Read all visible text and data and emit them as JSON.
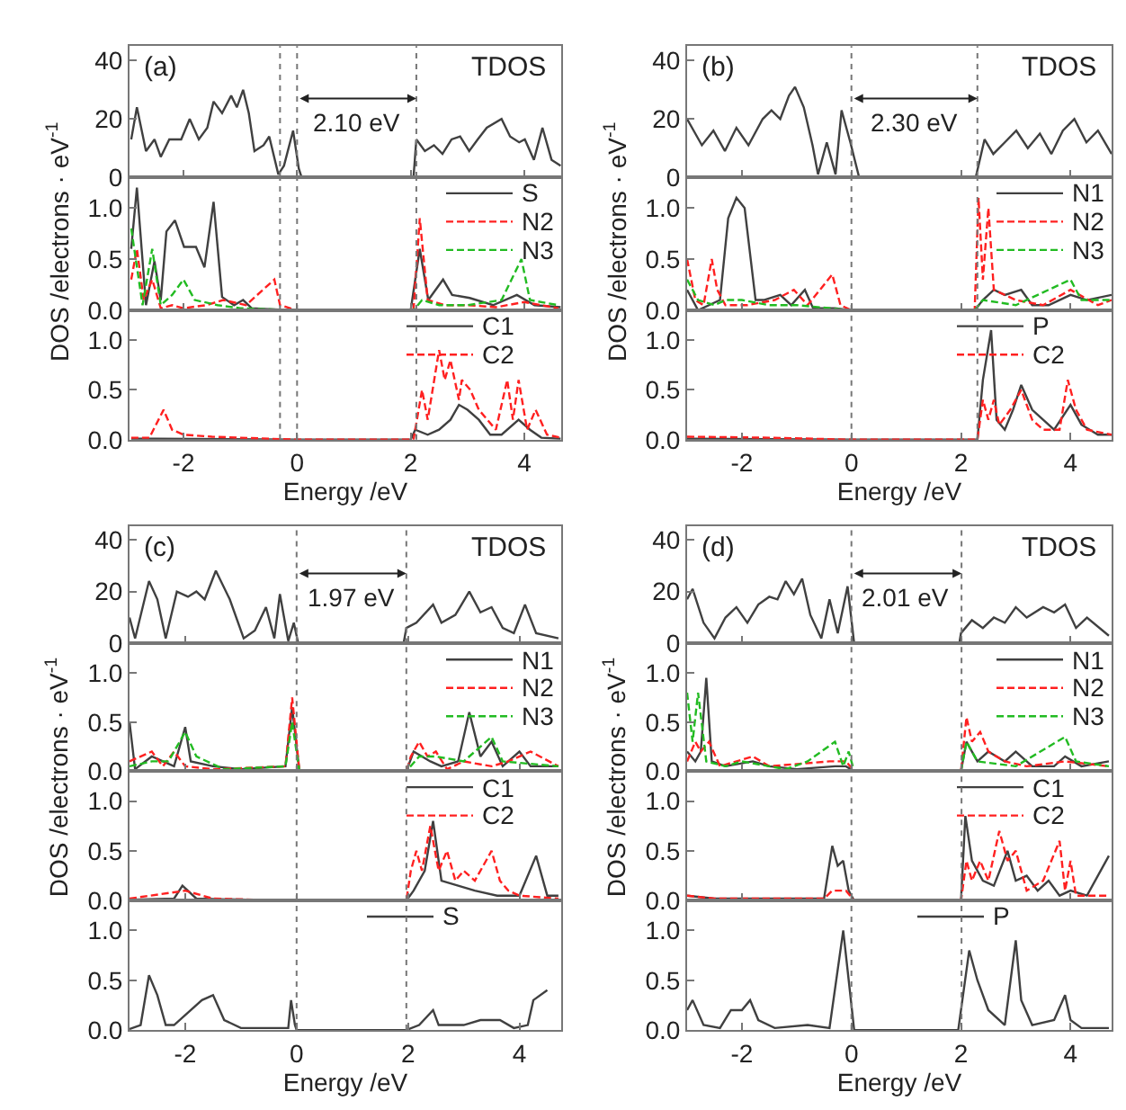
{
  "chart_data": [
    {
      "type": "line",
      "xlim": [
        -2.95,
        4.65
      ],
      "xticks": [
        -2,
        0,
        2,
        4
      ],
      "ylim": [
        0,
        45
      ],
      "yticks": [
        0,
        20,
        40
      ],
      "tick_labels": "y",
      "ylabel": "DOS /electrons · eV$^{-1}$",
      "ref_lines": [
        {
          "axis": "x",
          "value": -0.3,
          "line_style": "dotted"
        },
        {
          "axis": "x",
          "value": 0,
          "line_style": "dotted"
        },
        {
          "axis": "x",
          "value": 2.1,
          "line_style": "dotted"
        }
      ],
      "annotations": [
        "(a)",
        "TDOS",
        "2.10 eV"
      ],
      "series": [
        {
          "color": "#404040",
          "x": [
            -2.92,
            -2.82,
            -2.66,
            -2.51,
            -2.4,
            -2.25,
            -2.04,
            -1.89,
            -1.73,
            -1.58,
            -1.47,
            -1.32,
            -1.16,
            -1.06,
            -0.95,
            -0.85,
            -0.75,
            -0.59,
            -0.49,
            -0.33,
            -0.23,
            -0.07,
            0.03,
            0.08,
            2.05,
            2.1,
            2.25,
            2.41,
            2.56,
            2.72,
            2.87,
            3.03,
            3.18,
            3.34,
            3.6,
            3.75,
            3.91,
            4.01,
            4.17,
            4.32,
            4.48,
            4.64
          ],
          "values": [
            13,
            24,
            9,
            13,
            7,
            13,
            13,
            20,
            13,
            17,
            26,
            22,
            28,
            24,
            30,
            22,
            9,
            11,
            14,
            1,
            4,
            16,
            3,
            0,
            0,
            13,
            9,
            11,
            8,
            13,
            14,
            9,
            13,
            17,
            20,
            14,
            12,
            13,
            6,
            17,
            6,
            4
          ]
        }
      ]
    },
    {
      "type": "line",
      "xlim": [
        -2.95,
        4.65
      ],
      "xticks": [
        -2,
        0,
        2,
        4
      ],
      "ylim": [
        0,
        1.3
      ],
      "yticks": [
        {
          "value": 0,
          "label": "0.0"
        },
        {
          "value": 0.5,
          "label": "0.5"
        },
        {
          "value": 1,
          "label": "1.0"
        }
      ],
      "tick_labels": "y",
      "legend": "top right",
      "ref_lines": [
        {
          "axis": "x",
          "value": -0.3,
          "line_style": "dotted"
        },
        {
          "axis": "x",
          "value": 0,
          "line_style": "dotted"
        },
        {
          "axis": "x",
          "value": 2.1,
          "line_style": "dotted"
        }
      ],
      "series": [
        {
          "name": "S",
          "color": "#404040",
          "line_style": "solid",
          "x": [
            -2.92,
            -2.82,
            -2.66,
            -2.51,
            -2.4,
            -2.3,
            -2.15,
            -1.99,
            -1.89,
            -1.78,
            -1.73,
            -1.63,
            -1.47,
            -1.32,
            -1.11,
            -0.95,
            -0.8,
            -0.49,
            0,
            2.0,
            2.16,
            2.31,
            2.57,
            2.73,
            3.04,
            3.45,
            3.87,
            4.18,
            4.64
          ],
          "values": [
            0.6,
            1.2,
            0.05,
            0.48,
            0.1,
            0.77,
            0.88,
            0.62,
            null,
            0.62,
            null,
            0.42,
            1.06,
            0.13,
            0.05,
            0.1,
            0.02,
            0.01,
            0,
            0,
            0.6,
            0.1,
            0.3,
            0.15,
            0.12,
            0.05,
            0.15,
            0.05,
            0.03
          ]
        },
        {
          "name": "N2",
          "color": "#ff2020",
          "line_style": "dashed",
          "x": [
            -2.92,
            -2.82,
            -2.7,
            -2.55,
            -2.4,
            -2.2,
            -2.0,
            -1.6,
            -1.3,
            -0.9,
            -0.4,
            -0.3,
            0,
            2.05,
            2.16,
            2.3,
            2.6,
            3.0,
            3.5,
            4.0,
            4.6
          ],
          "values": [
            0.3,
            0.6,
            0.1,
            0.3,
            0.02,
            0.05,
            0.02,
            0.05,
            0.1,
            0.05,
            0.3,
            0.05,
            0,
            0,
            0.9,
            0.1,
            0.05,
            0.05,
            0.03,
            0.08,
            0.02
          ]
        },
        {
          "name": "N3",
          "color": "#22bb22",
          "line_style": "dashed",
          "x": [
            -2.92,
            -2.85,
            -2.72,
            -2.55,
            -2.4,
            -2.2,
            -2.0,
            -1.8,
            -1.4,
            -1.0,
            0,
            2.05,
            2.2,
            2.5,
            3.0,
            3.6,
            3.95,
            4.1,
            4.6
          ],
          "values": [
            0.8,
            null,
            0.05,
            0.6,
            0.05,
            0.15,
            0.3,
            0.1,
            0.05,
            0.02,
            0,
            0,
            0.1,
            0.05,
            0.05,
            0.1,
            0.5,
            0.1,
            0.05
          ]
        }
      ]
    },
    {
      "type": "line",
      "xlim": [
        -2.95,
        4.65
      ],
      "xticks": [
        -2,
        0,
        2,
        4
      ],
      "ylim": [
        0,
        1.3
      ],
      "yticks": [
        {
          "value": 0,
          "label": "0.0"
        },
        {
          "value": 0.5,
          "label": "0.5"
        },
        {
          "value": 1,
          "label": "1.0"
        }
      ],
      "xlabel": "Energy /eV",
      "legend": "top right",
      "ref_lines": [
        {
          "axis": "x",
          "value": -0.3,
          "line_style": "dotted"
        },
        {
          "axis": "x",
          "value": 0,
          "line_style": "dotted"
        },
        {
          "axis": "x",
          "value": 2.1,
          "line_style": "dotted"
        }
      ],
      "series": [
        {
          "name": "C1",
          "color": "#404040",
          "line_style": "solid",
          "x": [
            -2.92,
            -2.5,
            0,
            2.0,
            2.08,
            2.15,
            2.22,
            2.3,
            2.5,
            2.7,
            2.85,
            3.0,
            3.2,
            3.4,
            3.6,
            3.9,
            4.1,
            4.3,
            4.64
          ],
          "values": [
            0.01,
            0.01,
            0,
            0,
            0.1,
            null,
            null,
            0.05,
            0.1,
            0.2,
            0.35,
            0.3,
            0.2,
            0.05,
            0.05,
            0.2,
            0.1,
            0.02,
            0.01
          ]
        },
        {
          "name": "C2",
          "color": "#ff2020",
          "line_style": "dashed",
          "x": [
            -2.92,
            -2.6,
            -2.35,
            -2.2,
            -2.0,
            -1.5,
            -1.0,
            0,
            2.05,
            2.2,
            2.3,
            2.5,
            2.6,
            2.7,
            2.85,
            2.9,
            3.05,
            3.2,
            3.5,
            3.7,
            3.8,
            3.9,
            4.05,
            4.2,
            4.4,
            4.64
          ],
          "values": [
            0.02,
            0.02,
            0.3,
            0.1,
            0.05,
            0.03,
            0.02,
            0,
            0,
            0.5,
            0.2,
            0.9,
            0.6,
            0.8,
            0.4,
            0.6,
            0.5,
            0.3,
            0.1,
            0.6,
            0.2,
            0.6,
            0.1,
            0.3,
            0.05,
            0.02
          ]
        }
      ]
    },
    {
      "type": "line",
      "xlim": [
        -3.0,
        4.75
      ],
      "xticks": [
        -2,
        0,
        2,
        4
      ],
      "ylim": [
        0,
        45
      ],
      "yticks": [
        0,
        20,
        40
      ],
      "tick_labels": "y",
      "ylabel": "DOS /electrons · eV$^{-1}$",
      "ref_lines": [
        {
          "axis": "x",
          "value": 0,
          "line_style": "dotted"
        },
        {
          "axis": "x",
          "value": 2.3,
          "line_style": "dotted"
        }
      ],
      "annotations": [
        "(b)",
        "TDOS",
        "2.30 eV"
      ],
      "series": [
        {
          "color": "#404040",
          "x": [
            -3.0,
            -2.73,
            -2.52,
            -2.31,
            -2.1,
            -1.88,
            -1.62,
            -1.46,
            -1.3,
            -1.14,
            -1.03,
            -0.87,
            -0.71,
            -0.61,
            -0.45,
            -0.29,
            -0.18,
            -0.02,
            0.14,
            2.27,
            2.43,
            2.59,
            2.8,
            3.01,
            3.22,
            3.44,
            3.65,
            3.86,
            4.07,
            4.29,
            4.5,
            4.75
          ],
          "values": [
            20,
            11,
            16,
            9,
            17,
            11,
            20,
            23,
            20,
            28,
            31,
            24,
            11,
            1,
            12,
            1,
            23,
            12,
            0,
            0,
            13,
            8,
            12,
            16,
            10,
            15,
            8,
            16,
            20,
            12,
            16,
            8
          ]
        }
      ]
    },
    {
      "type": "line",
      "xlim": [
        -3.0,
        4.75
      ],
      "xticks": [
        -2,
        0,
        2,
        4
      ],
      "ylim": [
        0,
        1.3
      ],
      "yticks": [
        {
          "value": 0,
          "label": "0.0"
        },
        {
          "value": 0.5,
          "label": "0.5"
        },
        {
          "value": 1,
          "label": "1.0"
        }
      ],
      "tick_labels": "y",
      "legend": "top right",
      "ref_lines": [
        {
          "axis": "x",
          "value": 0,
          "line_style": "dotted"
        },
        {
          "axis": "x",
          "value": 2.3,
          "line_style": "dotted"
        }
      ],
      "series": [
        {
          "name": "N1",
          "color": "#404040",
          "line_style": "solid",
          "x": [
            -3.0,
            -2.8,
            -2.6,
            -2.4,
            -2.25,
            -2.1,
            -2.0,
            -1.95,
            -1.85,
            -1.75,
            -1.6,
            -1.3,
            -1.1,
            -0.85,
            -0.7,
            -0.3,
            0,
            2.25,
            2.4,
            2.6,
            2.8,
            3.1,
            3.3,
            3.6,
            4.0,
            4.3,
            4.75
          ],
          "values": [
            0.2,
            0.0,
            0.05,
            0.1,
            0.9,
            1.1,
            null,
            1.0,
            null,
            0.1,
            0.1,
            0.15,
            0.05,
            0.2,
            0.02,
            0.02,
            0,
            0,
            0.1,
            0.2,
            0.15,
            0.2,
            0.05,
            0.05,
            0.15,
            0.1,
            0.15
          ]
        },
        {
          "name": "N2",
          "color": "#ff2020",
          "line_style": "dashed",
          "x": [
            -3.0,
            -2.85,
            -2.7,
            -2.55,
            -2.45,
            -2.3,
            -1.9,
            -1.4,
            -1.05,
            -0.8,
            -0.35,
            -0.2,
            0,
            2.25,
            2.32,
            2.4,
            2.5,
            2.6,
            3.0,
            3.5,
            4.0,
            4.5,
            4.75
          ],
          "values": [
            0.5,
            0.1,
            0.05,
            0.5,
            0.2,
            0.05,
            0.05,
            0.1,
            0.2,
            0.05,
            0.35,
            0.05,
            0,
            0,
            1.1,
            0.3,
            1.0,
            0.2,
            0.1,
            0.05,
            0.2,
            0.05,
            0.1
          ]
        },
        {
          "name": "N3",
          "color": "#22bb22",
          "line_style": "dashed",
          "x": [
            -3.0,
            -2.9,
            -2.8,
            -2.5,
            -2.3,
            -2.0,
            -1.5,
            -1.0,
            0,
            2.25,
            2.4,
            3.0,
            4.0,
            4.2,
            4.75
          ],
          "values": [
            0.3,
            null,
            0.1,
            0.05,
            0.1,
            0.1,
            0.05,
            0.05,
            0,
            0,
            0.1,
            0.05,
            0.3,
            0.1,
            0.1
          ]
        }
      ]
    },
    {
      "type": "line",
      "xlim": [
        -3.0,
        4.75
      ],
      "xticks": [
        -2,
        0,
        2,
        4
      ],
      "ylim": [
        0,
        1.3
      ],
      "yticks": [
        {
          "value": 0,
          "label": "0.0"
        },
        {
          "value": 0.5,
          "label": "0.5"
        },
        {
          "value": 1,
          "label": "1.0"
        }
      ],
      "xlabel": "Energy /eV",
      "legend": "top right",
      "ref_lines": [
        {
          "axis": "x",
          "value": 0,
          "line_style": "dotted"
        },
        {
          "axis": "x",
          "value": 2.3,
          "line_style": "dotted"
        }
      ],
      "series": [
        {
          "name": "P",
          "color": "#404040",
          "line_style": "solid",
          "x": [
            -3.0,
            0,
            2.3,
            2.4,
            2.45,
            2.55,
            2.65,
            2.8,
            2.95,
            3.1,
            3.3,
            3.5,
            3.7,
            4.0,
            4.2,
            4.5,
            4.75
          ],
          "values": [
            0.01,
            0,
            0,
            0.6,
            null,
            1.1,
            0.2,
            0.1,
            0.3,
            0.55,
            0.3,
            0.2,
            0.1,
            0.35,
            0.15,
            0.05,
            0.05
          ]
        },
        {
          "name": "C2",
          "color": "#ff2020",
          "line_style": "dashed",
          "x": [
            -3.0,
            -1.5,
            0,
            2.3,
            2.4,
            2.5,
            2.6,
            2.7,
            2.9,
            3.1,
            3.3,
            3.5,
            3.8,
            3.95,
            4.1,
            4.3,
            4.75
          ],
          "values": [
            0.03,
            0.02,
            0,
            0,
            0.4,
            0.2,
            0.4,
            0.15,
            0.3,
            0.5,
            0.2,
            0.1,
            0.1,
            0.6,
            0.3,
            0.1,
            0.05
          ]
        }
      ]
    },
    {
      "type": "line",
      "xlim": [
        -3.0,
        4.75
      ],
      "xticks": [
        -2,
        0,
        2,
        4
      ],
      "ylim": [
        0,
        45
      ],
      "yticks": [
        0,
        20,
        40
      ],
      "tick_labels": "y",
      "ylabel": "DOS /electrons · eV$^{-1}$",
      "ref_lines": [
        {
          "axis": "x",
          "value": 0,
          "line_style": "dotted"
        },
        {
          "axis": "x",
          "value": 1.97,
          "line_style": "dotted"
        }
      ],
      "annotations": [
        "(c)",
        "TDOS",
        "1.97 eV"
      ],
      "series": [
        {
          "color": "#404040",
          "x": [
            -3.0,
            -2.9,
            -2.65,
            -2.5,
            -2.35,
            -2.15,
            -1.95,
            -1.8,
            -1.65,
            -1.45,
            -1.2,
            -0.95,
            -0.75,
            -0.55,
            -0.4,
            -0.3,
            -0.15,
            -0.05,
            0.03,
            1.92,
            1.97,
            2.15,
            2.45,
            2.6,
            2.85,
            3.1,
            3.3,
            3.5,
            3.7,
            3.9,
            4.1,
            4.3,
            4.7
          ],
          "values": [
            10,
            2,
            24,
            17,
            2,
            20,
            18,
            20,
            17,
            28,
            17,
            2,
            5,
            14,
            2,
            19,
            1,
            8,
            0,
            0,
            6,
            8,
            15,
            8,
            11,
            20,
            12,
            14,
            6,
            4,
            15,
            4,
            2
          ]
        }
      ]
    },
    {
      "type": "line",
      "xlim": [
        -3.0,
        4.75
      ],
      "xticks": [
        -2,
        0,
        2,
        4
      ],
      "ylim": [
        0,
        1.3
      ],
      "yticks": [
        {
          "value": 0,
          "label": "0.0"
        },
        {
          "value": 0.5,
          "label": "0.5"
        },
        {
          "value": 1,
          "label": "1.0"
        }
      ],
      "tick_labels": "y",
      "legend": "top right",
      "ref_lines": [
        {
          "axis": "x",
          "value": 0,
          "line_style": "dotted"
        },
        {
          "axis": "x",
          "value": 1.97,
          "line_style": "dotted"
        }
      ],
      "series": [
        {
          "name": "N1",
          "color": "#404040",
          "line_style": "solid",
          "x": [
            -3.0,
            -2.9,
            -2.6,
            -2.4,
            -2.2,
            -2.0,
            -1.9,
            -1.5,
            -1.0,
            -0.2,
            -0.08,
            0.05,
            1.97,
            2.1,
            2.4,
            2.6,
            2.9,
            3.1,
            3.3,
            3.5,
            3.7,
            4.0,
            4.2,
            4.7
          ],
          "values": [
            0.5,
            0.02,
            0.15,
            0.1,
            0.05,
            0.45,
            0.1,
            0.05,
            0.02,
            0.05,
            0.65,
            0,
            0,
            0.2,
            0.1,
            0.05,
            0.1,
            0.6,
            0.15,
            0.3,
            0.05,
            0.2,
            0.05,
            0.05
          ]
        },
        {
          "name": "N2",
          "color": "#ff2020",
          "line_style": "dashed",
          "x": [
            -3.0,
            -2.6,
            -2.4,
            -2.2,
            -2.0,
            -1.5,
            -0.2,
            -0.08,
            0.05,
            1.97,
            2.05,
            2.2,
            2.35,
            2.5,
            2.7,
            3.0,
            3.5,
            3.8,
            4.2,
            4.7
          ],
          "values": [
            0.1,
            0.2,
            0.05,
            0.2,
            0.05,
            0.02,
            0.05,
            0.75,
            0,
            0,
            0.15,
            0.3,
            0.15,
            0.2,
            0.02,
            0.1,
            0.05,
            0.1,
            0.2,
            0.05
          ]
        },
        {
          "name": "N3",
          "color": "#22bb22",
          "line_style": "dashed",
          "x": [
            -3.0,
            -2.6,
            -2.3,
            -2.0,
            -1.8,
            -1.3,
            -0.2,
            -0.08,
            0.05,
            1.97,
            2.2,
            2.5,
            3.0,
            3.5,
            3.7,
            4.7
          ],
          "values": [
            0.05,
            0.1,
            0.1,
            0.4,
            0.15,
            0.02,
            0.05,
            0.5,
            0,
            0,
            0.15,
            0.15,
            0.1,
            0.35,
            0.1,
            0.05
          ]
        }
      ]
    },
    {
      "type": "line",
      "xlim": [
        -3.0,
        4.75
      ],
      "xticks": [
        -2,
        0,
        2,
        4
      ],
      "ylim": [
        0,
        1.3
      ],
      "yticks": [
        {
          "value": 0,
          "label": "0.0"
        },
        {
          "value": 0.5,
          "label": "0.5"
        },
        {
          "value": 1,
          "label": "1.0"
        }
      ],
      "tick_labels": "y",
      "legend": "top right",
      "ref_lines": [
        {
          "axis": "x",
          "value": 0,
          "line_style": "dotted"
        },
        {
          "axis": "x",
          "value": 1.97,
          "line_style": "dotted"
        }
      ],
      "series": [
        {
          "name": "C1",
          "color": "#404040",
          "line_style": "solid",
          "x": [
            -3.0,
            -2.2,
            -2.05,
            -1.8,
            -0.2,
            -0.12,
            -0.05,
            0.02,
            1.97,
            2.1,
            2.3,
            2.45,
            2.6,
            2.9,
            3.2,
            3.6,
            4.0,
            4.3,
            4.5,
            4.7
          ],
          "values": [
            0.01,
            0.02,
            0.15,
            0.02,
            0.0,
            null,
            null,
            0,
            0,
            0.1,
            0.3,
            0.8,
            0.2,
            0.15,
            0.1,
            0.05,
            0.05,
            0.45,
            0.05,
            0.05
          ]
        },
        {
          "name": "C2",
          "color": "#ff2020",
          "line_style": "dashed",
          "x": [
            -3.0,
            -2.0,
            -1.5,
            0,
            1.97,
            2.05,
            2.15,
            2.25,
            2.4,
            2.55,
            2.7,
            2.85,
            3.0,
            3.2,
            3.5,
            3.65,
            3.8,
            4.0,
            4.7
          ],
          "values": [
            0.02,
            0.1,
            0.02,
            0,
            0,
            0.3,
            0.5,
            0.3,
            0.75,
            0.3,
            0.5,
            0.2,
            0.3,
            0.2,
            0.5,
            0.2,
            0.1,
            0.05,
            0.02
          ]
        }
      ]
    },
    {
      "type": "line",
      "xlim": [
        -3.0,
        4.75
      ],
      "xticks": [
        -2,
        0,
        2,
        4
      ],
      "ylim": [
        0,
        1.3
      ],
      "yticks": [
        {
          "value": 0,
          "label": "0.0"
        },
        {
          "value": 0.5,
          "label": "0.5"
        },
        {
          "value": 1,
          "label": "1.0"
        }
      ],
      "xlabel": "Energy /eV",
      "legend": "top right",
      "ref_lines": [
        {
          "axis": "x",
          "value": 0,
          "line_style": "dotted"
        },
        {
          "axis": "x",
          "value": 1.97,
          "line_style": "dotted"
        }
      ],
      "series": [
        {
          "name": "S",
          "color": "#404040",
          "line_style": "solid",
          "x": [
            -3.0,
            -2.8,
            -2.65,
            -2.5,
            -2.35,
            -2.2,
            -2.1,
            -2.05,
            -1.8,
            -1.7,
            -1.5,
            -1.3,
            -1.0,
            -0.15,
            -0.1,
            -0.03,
            0,
            1.97,
            2.2,
            2.45,
            2.55,
            3.0,
            3.1,
            3.2,
            3.3,
            3.45,
            3.55,
            3.65,
            3.9,
            4.15,
            4.2,
            4.25,
            4.35,
            4.5
          ],
          "values": [
            0.01,
            0.05,
            0.55,
            0.35,
            0.05,
            0.05,
            null,
            null,
            null,
            0.3,
            0.35,
            0.1,
            0.02,
            0.02,
            0.3,
            0.05,
            0,
            0,
            0.05,
            0.2,
            0.05,
            0.05,
            null,
            null,
            0.1,
            null,
            null,
            0.1,
            0.02,
            0.05,
            null,
            0.3,
            null,
            0.4
          ]
        }
      ]
    },
    {
      "type": "line",
      "xlim": [
        -3.0,
        4.75
      ],
      "xticks": [
        -2,
        0,
        2,
        4
      ],
      "ylim": [
        0,
        45
      ],
      "yticks": [
        0,
        20,
        40
      ],
      "tick_labels": "y",
      "ylabel": "DOS /electrons · eV$^{-1}$",
      "ref_lines": [
        {
          "axis": "x",
          "value": 0,
          "line_style": "dotted"
        },
        {
          "axis": "x",
          "value": 2.01,
          "line_style": "dotted"
        }
      ],
      "annotations": [
        "(d)",
        "TDOS",
        "2.01 eV"
      ],
      "series": [
        {
          "color": "#404040",
          "x": [
            -3.0,
            -2.9,
            -2.7,
            -2.5,
            -2.3,
            -2.1,
            -1.9,
            -1.7,
            -1.5,
            -1.35,
            -1.2,
            -1.05,
            -0.9,
            -0.75,
            -0.55,
            -0.4,
            -0.25,
            -0.07,
            0.05,
            1.97,
            2.0,
            2.2,
            2.4,
            2.6,
            2.8,
            3.0,
            3.2,
            3.5,
            3.7,
            3.9,
            4.1,
            4.3,
            4.7
          ],
          "values": [
            17,
            21,
            8,
            2,
            10,
            14,
            8,
            15,
            18,
            17,
            24,
            19,
            25,
            11,
            2,
            17,
            4,
            22,
            0,
            0,
            4,
            9,
            6,
            10,
            8,
            14,
            10,
            14,
            12,
            15,
            6,
            10,
            3
          ]
        }
      ]
    },
    {
      "type": "line",
      "xlim": [
        -3.0,
        4.75
      ],
      "xticks": [
        -2,
        0,
        2,
        4
      ],
      "ylim": [
        0,
        1.3
      ],
      "yticks": [
        {
          "value": 0,
          "label": "0.0"
        },
        {
          "value": 0.5,
          "label": "0.5"
        },
        {
          "value": 1,
          "label": "1.0"
        }
      ],
      "tick_labels": "y",
      "legend": "top right",
      "ref_lines": [
        {
          "axis": "x",
          "value": 0,
          "line_style": "dotted"
        },
        {
          "axis": "x",
          "value": 2.01,
          "line_style": "dotted"
        }
      ],
      "series": [
        {
          "name": "N1",
          "color": "#404040",
          "line_style": "solid",
          "x": [
            -3.0,
            -2.85,
            -2.75,
            -2.65,
            -2.55,
            -2.3,
            -1.8,
            -1.5,
            -1.0,
            -0.3,
            -0.1,
            0.05,
            2.0,
            2.1,
            2.3,
            2.5,
            2.8,
            3.0,
            3.3,
            3.7,
            3.9,
            4.2,
            4.7
          ],
          "values": [
            0.2,
            0.1,
            0.2,
            0.95,
            0.1,
            0.05,
            0.1,
            0.05,
            0.02,
            0.05,
            0.05,
            0,
            0,
            0.3,
            0.1,
            0.2,
            0.1,
            0.2,
            0.05,
            0.05,
            0.15,
            0.05,
            0.1
          ]
        },
        {
          "name": "N2",
          "color": "#ff2020",
          "line_style": "dashed",
          "x": [
            -3.0,
            -2.85,
            -2.75,
            -2.6,
            -2.4,
            -1.8,
            -1.5,
            -0.4,
            -0.1,
            0.05,
            2.0,
            2.1,
            2.2,
            2.35,
            2.5,
            2.8,
            3.2,
            3.9,
            4.7
          ],
          "values": [
            0.1,
            0.3,
            0.2,
            0.3,
            0.05,
            0.15,
            0.05,
            0.1,
            0.1,
            0,
            0,
            0.55,
            0.3,
            0.4,
            0.2,
            0.1,
            0.05,
            0.1,
            0.05
          ]
        },
        {
          "name": "N3",
          "color": "#22bb22",
          "line_style": "dashed",
          "x": [
            -3.0,
            -2.9,
            -2.8,
            -2.65,
            -2.3,
            -2.0,
            -1.2,
            -0.8,
            -0.3,
            -0.15,
            -0.05,
            0.05,
            2.0,
            2.1,
            2.3,
            3.0,
            3.9,
            4.1,
            4.7
          ],
          "values": [
            0.8,
            0.3,
            0.8,
            0.1,
            0.05,
            0.1,
            0.02,
            0.1,
            0.3,
            0.05,
            0.2,
            0,
            0,
            0.3,
            0.1,
            0.05,
            0.35,
            0.1,
            0.05
          ]
        }
      ]
    },
    {
      "type": "line",
      "xlim": [
        -3.0,
        4.75
      ],
      "xticks": [
        -2,
        0,
        2,
        4
      ],
      "ylim": [
        0,
        1.3
      ],
      "yticks": [
        {
          "value": 0,
          "label": "0.0"
        },
        {
          "value": 0.5,
          "label": "0.5"
        },
        {
          "value": 1,
          "label": "1.0"
        }
      ],
      "tick_labels": "y",
      "legend": "top right",
      "ref_lines": [
        {
          "axis": "x",
          "value": 0,
          "line_style": "dotted"
        },
        {
          "axis": "x",
          "value": 2.01,
          "line_style": "dotted"
        }
      ],
      "series": [
        {
          "name": "C1",
          "color": "#404040",
          "line_style": "solid",
          "x": [
            -3.0,
            -2.5,
            -1.5,
            -0.5,
            -0.35,
            -0.25,
            -0.15,
            -0.05,
            0.05,
            2.0,
            2.08,
            2.2,
            2.4,
            2.6,
            2.85,
            3.0,
            3.2,
            3.4,
            3.6,
            3.8,
            4.0,
            4.3,
            4.7
          ],
          "values": [
            0.05,
            0.02,
            0.02,
            0.02,
            0.55,
            0.35,
            0.4,
            0.1,
            0,
            0,
            0.85,
            0.4,
            0.2,
            0.15,
            0.5,
            0.2,
            0.25,
            0.1,
            0.2,
            0.05,
            0.1,
            0.05,
            0.45
          ]
        },
        {
          "name": "C2",
          "color": "#ff2020",
          "line_style": "dashed",
          "x": [
            -3.0,
            -2.5,
            -0.5,
            -0.35,
            -0.1,
            0.05,
            2.0,
            2.1,
            2.2,
            2.35,
            2.5,
            2.7,
            2.85,
            3.0,
            3.2,
            3.5,
            3.8,
            3.9,
            4.0,
            4.1,
            4.7
          ],
          "values": [
            0.05,
            0.02,
            0.02,
            0.1,
            0.1,
            0,
            0,
            0.4,
            0.2,
            0.4,
            0.2,
            0.7,
            0.4,
            0.5,
            0.1,
            0.2,
            0.6,
            0.1,
            0.4,
            0.05,
            0.05
          ]
        }
      ]
    },
    {
      "type": "line",
      "xlim": [
        -3.0,
        4.75
      ],
      "xticks": [
        -2,
        0,
        2,
        4
      ],
      "ylim": [
        0,
        1.3
      ],
      "yticks": [
        {
          "value": 0,
          "label": "0.0"
        },
        {
          "value": 0.5,
          "label": "0.5"
        },
        {
          "value": 1,
          "label": "1.0"
        }
      ],
      "xlabel": "Energy /eV",
      "legend": "top right",
      "ref_lines": [
        {
          "axis": "x",
          "value": 0,
          "line_style": "dotted"
        },
        {
          "axis": "x",
          "value": 2.01,
          "line_style": "dotted"
        }
      ],
      "series": [
        {
          "name": "P",
          "color": "#404040",
          "line_style": "solid",
          "x": [
            -3.0,
            -2.9,
            -2.7,
            -2.4,
            -2.2,
            -2.0,
            -1.85,
            -1.7,
            -1.4,
            -0.8,
            -0.4,
            -0.35,
            -0.25,
            -0.15,
            -0.05,
            0.05,
            1.95,
            2.05,
            2.15,
            2.3,
            2.5,
            2.8,
            3.0,
            3.1,
            3.3,
            3.7,
            3.9,
            4.0,
            4.2,
            4.7
          ],
          "values": [
            0.2,
            0.3,
            0.05,
            0.02,
            0.2,
            0.2,
            0.3,
            0.1,
            0.02,
            0.05,
            0.02,
            null,
            null,
            1.0,
            null,
            0,
            0,
            null,
            0.8,
            0.5,
            0.2,
            0.05,
            0.9,
            0.3,
            0.05,
            0.1,
            0.35,
            0.1,
            0.02,
            0.02
          ]
        }
      ]
    }
  ]
}
